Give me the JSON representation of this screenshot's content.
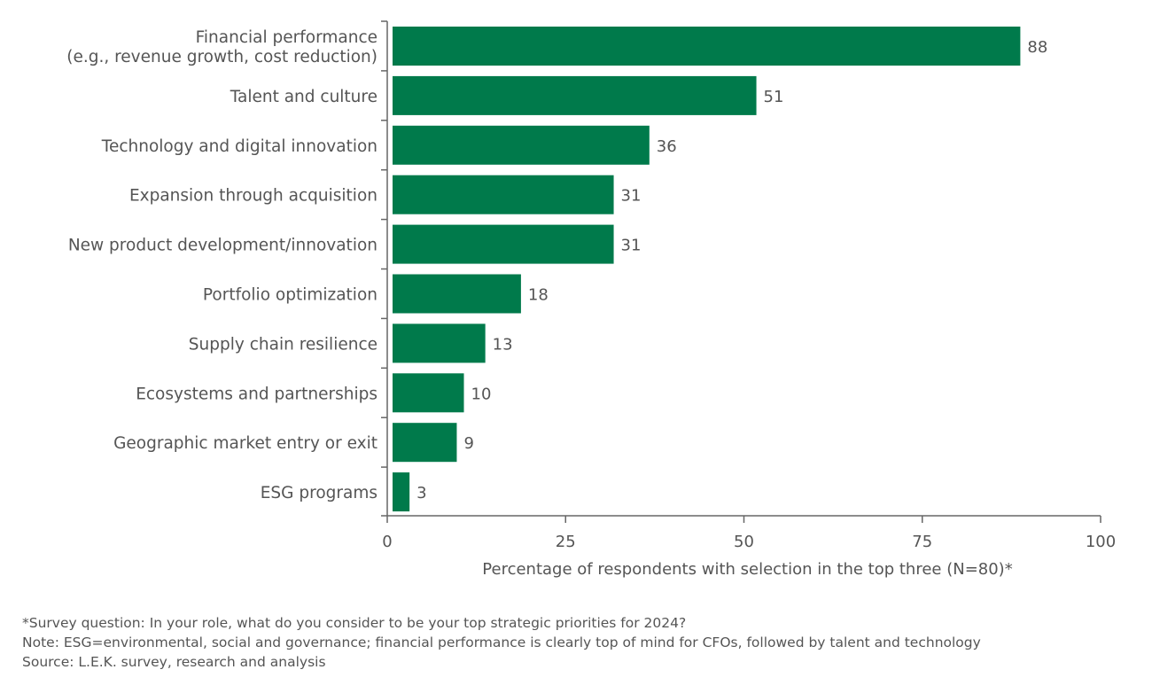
{
  "chart_data": {
    "type": "bar",
    "orientation": "horizontal",
    "categories": [
      [
        "Financial performance",
        "(e.g., revenue growth, cost reduction)"
      ],
      [
        "Talent and culture"
      ],
      [
        "Technology and digital innovation"
      ],
      [
        "Expansion through acquisition"
      ],
      [
        "New product development/innovation"
      ],
      [
        "Portfolio optimization"
      ],
      [
        "Supply chain resilience"
      ],
      [
        "Ecosystems and partnerships"
      ],
      [
        "Geographic market entry or exit"
      ],
      [
        "ESG programs"
      ]
    ],
    "values": [
      88,
      51,
      36,
      31,
      31,
      18,
      13,
      10,
      9,
      3
    ],
    "xlabel": "Percentage of respondents with selection in the top three (N=80)*",
    "xlim": [
      0,
      100
    ],
    "xticks": [
      0,
      25,
      50,
      75,
      100
    ],
    "grid": false,
    "bar_color": "#007A4B"
  },
  "notes": [
    "*Survey question: In your role, what do you consider to be your top strategic priorities for 2024?",
    "Note: ESG=environmental, social and governance; financial performance is clearly top of mind for CFOs, followed by talent and technology",
    "Source: L.E.K. survey, research and analysis"
  ]
}
